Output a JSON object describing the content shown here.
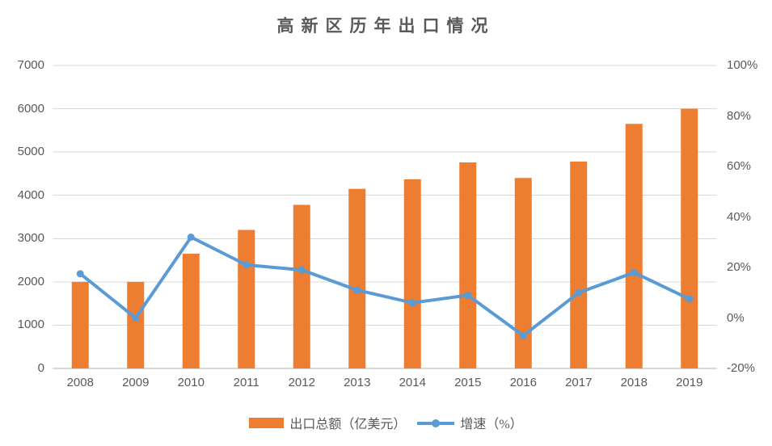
{
  "title": "高新区历年出口情况",
  "legend": {
    "bar_label": "出口总额（亿美元）",
    "line_label": "增速（%）"
  },
  "colors": {
    "bar": "#ED7D31",
    "line": "#5B9BD5",
    "gridline": "#D9D9D9",
    "axis_line": "#D9D9D9",
    "text": "#595959"
  },
  "chart_data": {
    "type": "combo",
    "title": "高新区历年出口情况",
    "categories": [
      "2008",
      "2009",
      "2010",
      "2011",
      "2012",
      "2013",
      "2014",
      "2015",
      "2016",
      "2017",
      "2018",
      "2019"
    ],
    "series": [
      {
        "name": "出口总额（亿美元）",
        "type": "bar",
        "axis": "left",
        "color": "#ED7D31",
        "values": [
          2000,
          2000,
          2650,
          3200,
          3780,
          4150,
          4370,
          4760,
          4400,
          4780,
          5650,
          6000
        ]
      },
      {
        "name": "增速（%）",
        "type": "line",
        "axis": "right",
        "color": "#5B9BD5",
        "values": [
          17.5,
          0,
          32,
          21,
          19,
          11,
          6,
          9,
          -7,
          10,
          18,
          7.5
        ]
      }
    ],
    "axes": {
      "left": {
        "min": 0,
        "max": 7000,
        "step": 1000,
        "tick_labels": [
          "0",
          "1000",
          "2000",
          "3000",
          "4000",
          "5000",
          "6000",
          "7000"
        ]
      },
      "right": {
        "min": -20,
        "max": 100,
        "step": 20,
        "tick_labels": [
          "-20%",
          "0%",
          "20%",
          "40%",
          "60%",
          "80%",
          "100%"
        ]
      }
    },
    "grid": true,
    "legend_position": "bottom",
    "xlabel": "",
    "ylabel": ""
  }
}
